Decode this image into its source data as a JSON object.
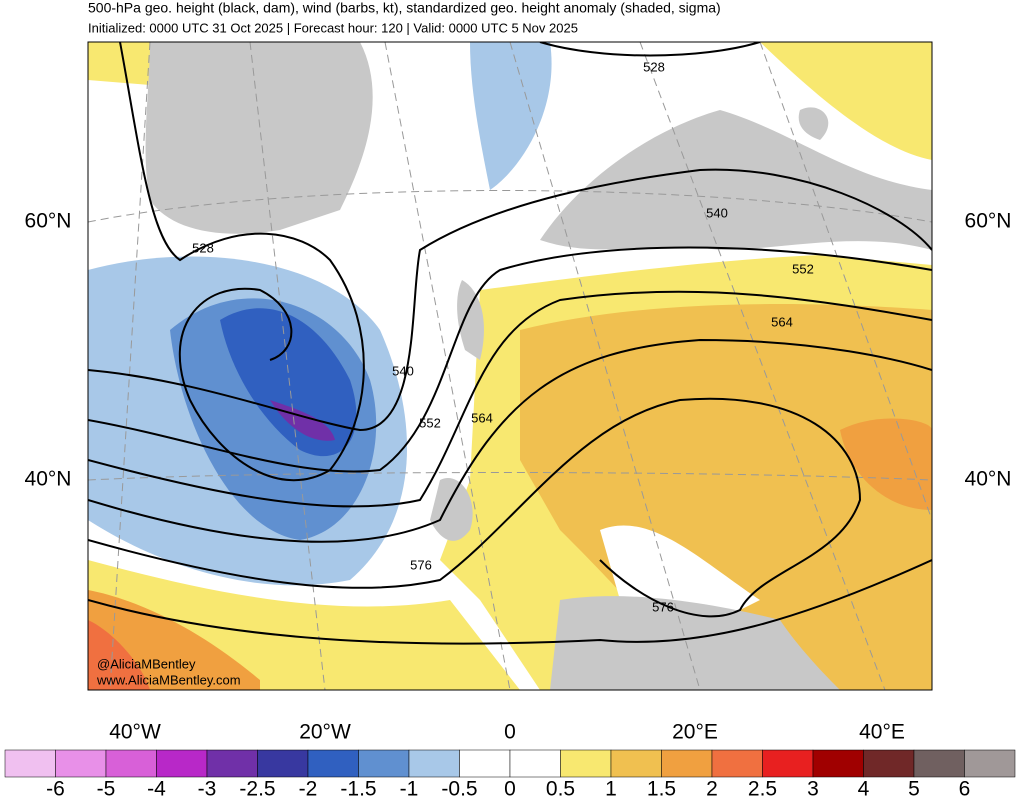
{
  "header": {
    "title": "500-hPa geo. height (black, dam), wind (barbs, kt), standardized geo. height anomaly (shaded, sigma)",
    "subtitle": "Initialized: 0000 UTC 31 Oct 2025 | Forecast hour: 120 | Valid: 0000 UTC 5 Nov 2025"
  },
  "map": {
    "lat_labels": [
      "60°N",
      "40°N"
    ],
    "lon_labels": [
      "40°W",
      "20°W",
      "0",
      "20°E",
      "40°E"
    ],
    "contour_labels": [
      "528",
      "528",
      "540",
      "540",
      "552",
      "552",
      "564",
      "564",
      "576",
      "576"
    ],
    "credits": [
      "@AliciaMBentley",
      "www.AliciaMBentley.com"
    ]
  },
  "colorbar": {
    "labels": [
      "-6",
      "-5",
      "-4",
      "-3",
      "-2.5",
      "-2",
      "-1.5",
      "-1",
      "-0.5",
      "0",
      "0.5",
      "1",
      "1.5",
      "2",
      "2.5",
      "3",
      "4",
      "5",
      "6"
    ]
  }
}
